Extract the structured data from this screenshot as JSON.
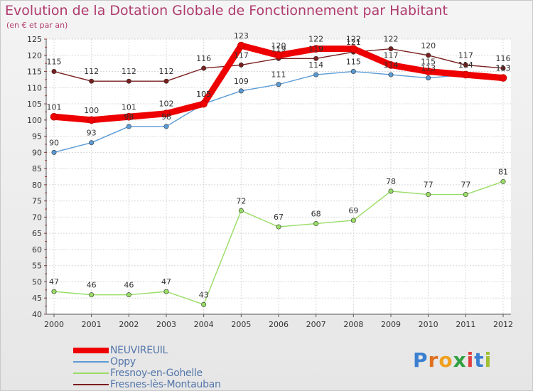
{
  "chart_data": {
    "type": "line",
    "title": "Evolution de la Dotation Globale de Fonctionnement par Habitant",
    "subtitle": "(en € et par an)",
    "categories": [
      "2000",
      "2001",
      "2002",
      "2003",
      "2004",
      "2005",
      "2006",
      "2007",
      "2008",
      "2009",
      "2010",
      "2011",
      "2012"
    ],
    "ylim": [
      40,
      125
    ],
    "yticks": [
      40,
      45,
      50,
      55,
      60,
      65,
      70,
      75,
      80,
      85,
      90,
      95,
      100,
      105,
      110,
      115,
      120,
      125
    ],
    "grid": true,
    "legend_position": "bottom-left",
    "series": [
      {
        "name": "NEUVIREUIL",
        "color": "#ee0000",
        "values": [
          101,
          100,
          101,
          102,
          105,
          123,
          120,
          122,
          122,
          117,
          115,
          114,
          113
        ]
      },
      {
        "name": "Oppy",
        "color": "#5b9bd5",
        "values": [
          90,
          93,
          98,
          98,
          105,
          109,
          111,
          114,
          115,
          114,
          113,
          114,
          113
        ]
      },
      {
        "name": "Fresnoy-en-Gohelle",
        "color": "#99dd66",
        "values": [
          47,
          46,
          46,
          47,
          43,
          72,
          67,
          68,
          69,
          78,
          77,
          77,
          81
        ]
      },
      {
        "name": "Fresnes-lès-Montauban",
        "color": "#7a1f1f",
        "values": [
          115,
          112,
          112,
          112,
          116,
          117,
          119,
          119,
          121,
          122,
          120,
          117,
          116
        ]
      }
    ]
  },
  "logo": {
    "letters": [
      "P",
      "r",
      "o",
      "x",
      "i",
      "t",
      "i"
    ],
    "colors": [
      "#3a7fd0",
      "#e07020",
      "#f0a020",
      "#30a040",
      "#e04040",
      "#3a7fd0",
      "#a0c030"
    ]
  }
}
